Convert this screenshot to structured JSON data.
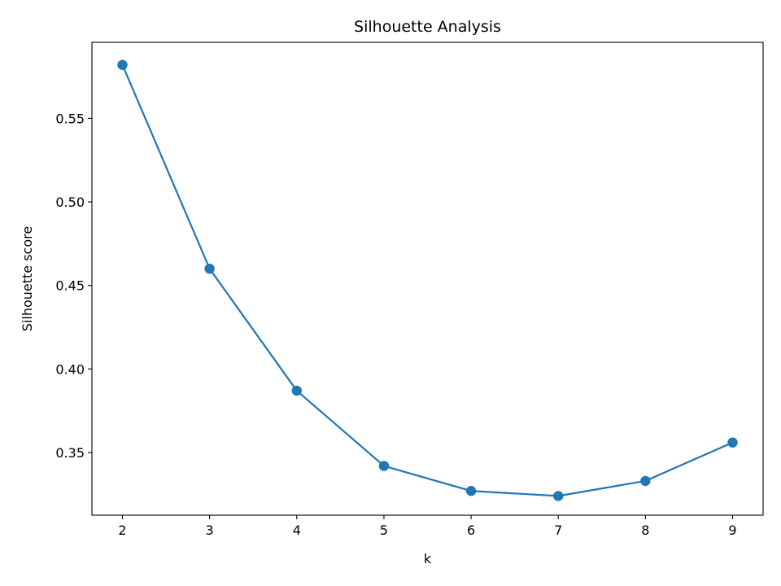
{
  "chart_data": {
    "type": "line",
    "title": "Silhouette Analysis",
    "xlabel": "k",
    "ylabel": "Silhouette score",
    "x": [
      2,
      3,
      4,
      5,
      6,
      7,
      8,
      9
    ],
    "series": [
      {
        "values": [
          0.582,
          0.46,
          0.387,
          0.342,
          0.327,
          0.324,
          0.333,
          0.356
        ],
        "color": "#1f77b4",
        "marker": "circle"
      }
    ],
    "xlim": [
      1.65,
      9.35
    ],
    "ylim": [
      0.3125,
      0.5955
    ],
    "xticks": [
      2,
      3,
      4,
      5,
      6,
      7,
      8,
      9
    ],
    "xtick_labels": [
      "2",
      "3",
      "4",
      "5",
      "6",
      "7",
      "8",
      "9"
    ],
    "yticks": [
      0.35,
      0.4,
      0.45,
      0.5,
      0.55
    ],
    "ytick_labels": [
      "0.35",
      "0.40",
      "0.45",
      "0.50",
      "0.55"
    ],
    "grid": false,
    "legend": "none"
  }
}
